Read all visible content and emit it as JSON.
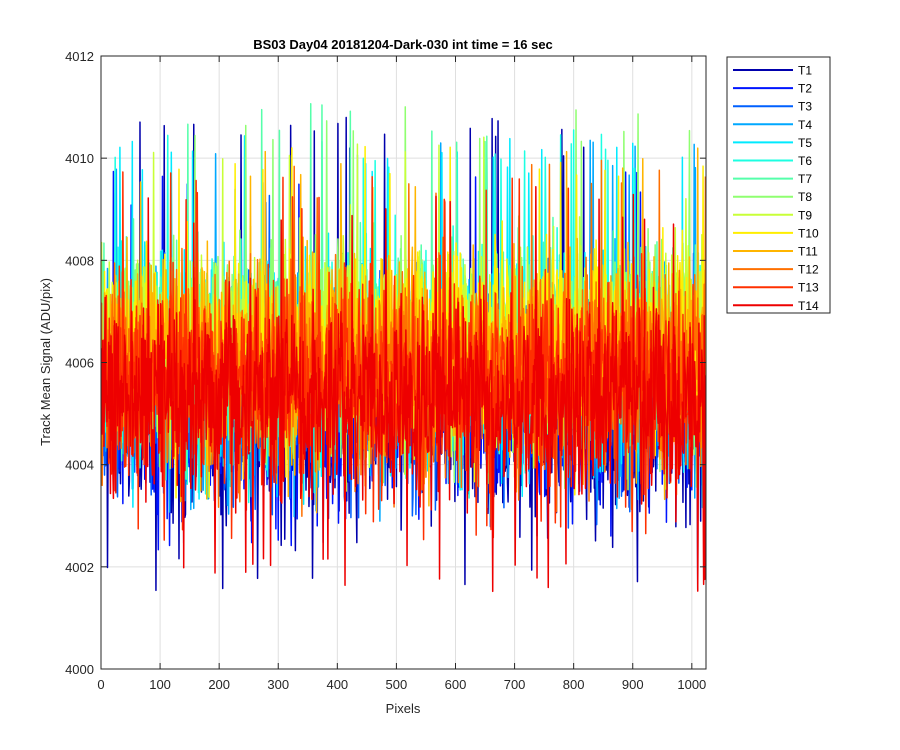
{
  "chart_data": {
    "type": "line",
    "title": "BS03 Day04 20181204-Dark-030 int time = 16 sec",
    "xlabel": "Pixels",
    "ylabel": "Track Mean Signal (ADU/pix)",
    "xlim": [
      0,
      1024
    ],
    "ylim": [
      4000,
      4012
    ],
    "xticks": [
      0,
      100,
      200,
      300,
      400,
      500,
      600,
      700,
      800,
      900,
      1000
    ],
    "yticks": [
      4000,
      4002,
      4004,
      4006,
      4008,
      4010,
      4012
    ],
    "grid": true,
    "legend_position": "outside-top-right",
    "n_points_per_series": 1024,
    "series": [
      {
        "name": "T1",
        "color": "#0000ad",
        "mean": 4004.9,
        "spread": 1.6,
        "min": 4001.2,
        "max": 4010.8
      },
      {
        "name": "T2",
        "color": "#0014ff",
        "mean": 4005.2,
        "spread": 1.5,
        "min": 4002.3,
        "max": 4009.8
      },
      {
        "name": "T3",
        "color": "#0060ff",
        "mean": 4005.5,
        "spread": 1.5,
        "min": 4002.6,
        "max": 4009.8
      },
      {
        "name": "T4",
        "color": "#00a8ff",
        "mean": 4005.8,
        "spread": 1.5,
        "min": 4002.8,
        "max": 4010.4
      },
      {
        "name": "T5",
        "color": "#00eaff",
        "mean": 4006.1,
        "spread": 1.5,
        "min": 4003.0,
        "max": 4010.5
      },
      {
        "name": "T6",
        "color": "#1cffe2",
        "mean": 4006.2,
        "spread": 1.5,
        "min": 4003.2,
        "max": 4010.6
      },
      {
        "name": "T7",
        "color": "#55ffaa",
        "mean": 4006.3,
        "spread": 1.5,
        "min": 4003.3,
        "max": 4011.1
      },
      {
        "name": "T8",
        "color": "#8fff70",
        "mean": 4006.4,
        "spread": 1.5,
        "min": 4003.4,
        "max": 4011.1
      },
      {
        "name": "T9",
        "color": "#c8ff37",
        "mean": 4006.4,
        "spread": 1.5,
        "min": 4003.4,
        "max": 4010.7
      },
      {
        "name": "T10",
        "color": "#ffee00",
        "mean": 4006.3,
        "spread": 1.5,
        "min": 4003.2,
        "max": 4010.4
      },
      {
        "name": "T11",
        "color": "#ffb500",
        "mean": 4006.1,
        "spread": 1.5,
        "min": 4003.0,
        "max": 4010.2
      },
      {
        "name": "T12",
        "color": "#ff7000",
        "mean": 4005.8,
        "spread": 1.5,
        "min": 4002.9,
        "max": 4010.0
      },
      {
        "name": "T13",
        "color": "#ff3000",
        "mean": 4005.6,
        "spread": 1.5,
        "min": 4002.4,
        "max": 4009.8
      },
      {
        "name": "T14",
        "color": "#ee0000",
        "mean": 4005.3,
        "spread": 1.5,
        "min": 4001.4,
        "max": 4009.5
      }
    ]
  }
}
